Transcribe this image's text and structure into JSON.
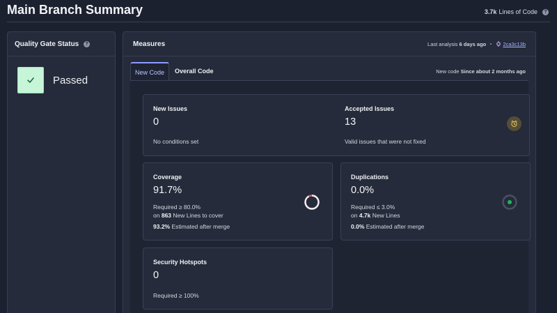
{
  "header": {
    "title": "Main Branch Summary",
    "loc_value": "3.7k",
    "loc_label": "Lines of Code"
  },
  "quality_gate": {
    "title": "Quality Gate Status",
    "status": "Passed"
  },
  "measures": {
    "title": "Measures",
    "last_analysis_label": "Last analysis",
    "last_analysis_value": "6 days ago",
    "commit": "2ca3c13b",
    "tabs": [
      "New Code",
      "Overall Code"
    ],
    "new_code_label": "New code",
    "new_code_value": "Since about 2 months ago"
  },
  "cards": {
    "new_issues": {
      "label": "New Issues",
      "value": "0",
      "sub": "No conditions set"
    },
    "accepted_issues": {
      "label": "Accepted Issues",
      "value": "13",
      "sub": "Valid issues that were not fixed"
    },
    "coverage": {
      "label": "Coverage",
      "value": "91.7%",
      "required": "Required ≥ 80.0%",
      "on": "on",
      "lines_count": "863",
      "lines_text": "New Lines to cover",
      "estimate_value": "93.2%",
      "estimate_text": "Estimated after merge",
      "gauge_fraction": 0.917
    },
    "duplications": {
      "label": "Duplications",
      "value": "0.0%",
      "required": "Required ≤ 3.0%",
      "on": "on",
      "lines_count": "4.7k",
      "lines_text": "New Lines",
      "estimate_value": "0.0%",
      "estimate_text": "Estimated after merge"
    },
    "security_hotspots": {
      "label": "Security Hotspots",
      "value": "0",
      "sub": "Required ≥ 100%"
    }
  },
  "colors": {
    "passed": "#c6f5d8",
    "good": "#1fb45a",
    "bad": "#e05a5a",
    "accent": "#8d9bff"
  },
  "icons": [
    "help-icon",
    "check-icon",
    "commit-icon",
    "accepted-issue-icon",
    "coverage-gauge",
    "duplication-gauge"
  ]
}
